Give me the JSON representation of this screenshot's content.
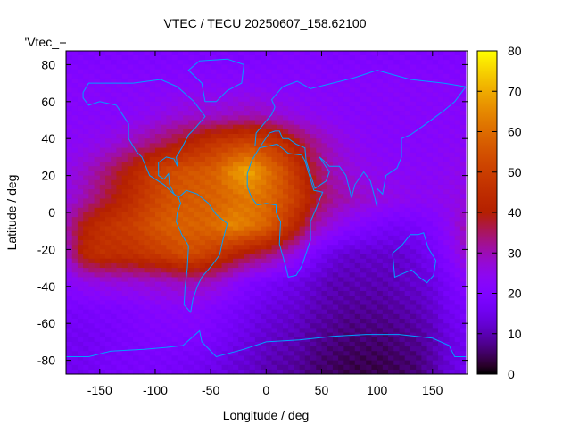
{
  "chart_data": {
    "type": "heatmap",
    "title": "VTEC / TECU 20250607_158.62100",
    "xlabel": "Longitude / deg",
    "ylabel": "Latitude / deg",
    "key_label": "'Vtec_",
    "xlim": [
      -180,
      180
    ],
    "ylim": [
      -87.5,
      87.5
    ],
    "xticks": [
      -150,
      -100,
      -50,
      0,
      50,
      100,
      150
    ],
    "yticks": [
      -80,
      -60,
      -40,
      -20,
      0,
      20,
      40,
      60,
      80
    ],
    "colorbar": {
      "range": [
        0,
        80
      ],
      "ticks": [
        0,
        10,
        20,
        30,
        40,
        50,
        60,
        70,
        80
      ],
      "palette": "black-blue-purple-red-orange-yellow"
    },
    "lon_centers": [
      -180,
      -165,
      -150,
      -135,
      -120,
      -105,
      -90,
      -75,
      -60,
      -45,
      -30,
      -15,
      0,
      15,
      30,
      45,
      60,
      75,
      90,
      105,
      120,
      135,
      150,
      165
    ],
    "lat_centers": [
      82.5,
      67.5,
      52.5,
      37.5,
      22.5,
      7.5,
      -7.5,
      -22.5,
      -37.5,
      -52.5,
      -67.5,
      -82.5
    ],
    "values": [
      [
        20,
        20,
        20,
        20,
        20,
        20,
        20,
        20,
        20,
        20,
        20,
        20,
        20,
        21,
        21,
        21,
        20,
        20,
        20,
        20,
        20,
        20,
        20,
        20
      ],
      [
        22,
        22,
        22,
        22,
        22,
        22,
        22,
        23,
        23,
        23,
        23,
        23,
        23,
        22,
        22,
        22,
        22,
        22,
        22,
        22,
        22,
        22,
        22,
        22
      ],
      [
        22,
        22,
        22,
        22,
        23,
        24,
        26,
        27,
        28,
        28,
        29,
        30,
        29,
        27,
        25,
        24,
        23,
        22,
        22,
        22,
        22,
        22,
        22,
        22
      ],
      [
        23,
        24,
        25,
        27,
        30,
        33,
        36,
        40,
        44,
        48,
        50,
        52,
        50,
        45,
        38,
        32,
        28,
        25,
        23,
        22,
        22,
        22,
        22,
        23
      ],
      [
        25,
        28,
        32,
        37,
        42,
        48,
        52,
        55,
        56,
        58,
        66,
        70,
        62,
        55,
        45,
        36,
        30,
        27,
        25,
        24,
        23,
        23,
        23,
        24
      ],
      [
        26,
        30,
        35,
        40,
        45,
        50,
        54,
        56,
        57,
        58,
        60,
        62,
        60,
        55,
        48,
        38,
        32,
        30,
        28,
        26,
        25,
        24,
        24,
        25
      ],
      [
        30,
        40,
        45,
        48,
        50,
        54,
        57,
        58,
        58,
        60,
        65,
        62,
        58,
        50,
        40,
        30,
        26,
        22,
        20,
        18,
        17,
        18,
        20,
        24
      ],
      [
        28,
        42,
        46,
        45,
        46,
        48,
        50,
        54,
        52,
        48,
        42,
        38,
        35,
        30,
        24,
        18,
        14,
        12,
        12,
        12,
        12,
        14,
        17,
        22
      ],
      [
        22,
        25,
        26,
        27,
        27,
        28,
        28,
        30,
        30,
        28,
        24,
        20,
        18,
        16,
        14,
        12,
        10,
        10,
        10,
        10,
        11,
        12,
        14,
        18
      ],
      [
        18,
        18,
        19,
        19,
        20,
        21,
        22,
        22,
        22,
        20,
        18,
        16,
        14,
        13,
        12,
        10,
        9,
        8,
        8,
        8,
        9,
        10,
        12,
        16
      ],
      [
        16,
        16,
        17,
        18,
        19,
        20,
        20,
        20,
        20,
        18,
        16,
        14,
        12,
        11,
        10,
        8,
        7,
        6,
        6,
        6,
        7,
        8,
        10,
        14
      ],
      [
        16,
        16,
        17,
        18,
        18,
        18,
        18,
        17,
        16,
        15,
        13,
        12,
        10,
        9,
        8,
        6,
        5,
        4,
        4,
        4,
        5,
        6,
        9,
        13
      ]
    ],
    "coastline_color": "#00a0ff"
  }
}
